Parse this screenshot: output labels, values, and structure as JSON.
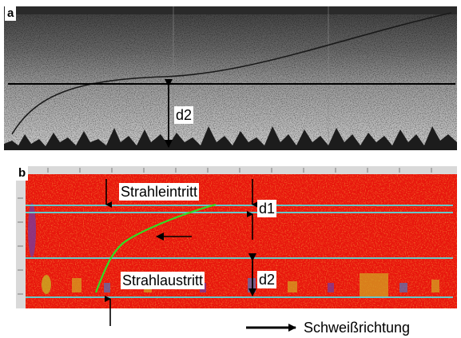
{
  "panel_a": {
    "label": "a",
    "dimension_label": "d2"
  },
  "panel_b": {
    "label": "b",
    "beam_entry_label": "Strahleintritt",
    "beam_exit_label": "Strahlaustritt",
    "dimension_label_1": "d1",
    "dimension_label_2": "d2"
  },
  "legend": {
    "welding_direction_label": "Schweißrichtung"
  },
  "colors": {
    "thermal_background": "#e8140c",
    "guide_line": "#66c8c8",
    "weld_curve": "#33dd22"
  }
}
